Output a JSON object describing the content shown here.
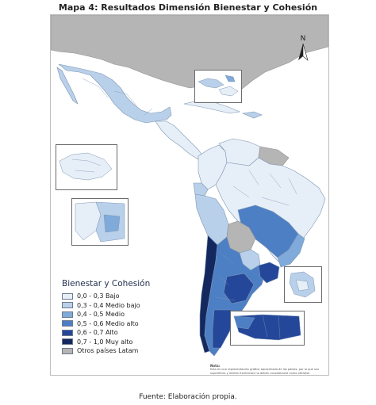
{
  "title": "Mapa 4: Resultados Dimensión Bienestar y Cohesión",
  "north_label": "N",
  "legend": {
    "title": "Bienestar y Cohesión",
    "items": [
      {
        "label": "0,0 - 0,3 Bajo",
        "color": "#e6eef8"
      },
      {
        "label": "0,3 - 0,4 Medio bajo",
        "color": "#b9d0ea"
      },
      {
        "label": "0,4 - 0,5 Medio",
        "color": "#7faada"
      },
      {
        "label": "0,5 - 0,6 Medio alto",
        "color": "#4d7fc4"
      },
      {
        "label": "0,6 - 0,7 Alto",
        "color": "#24479a"
      },
      {
        "label": "0,7 - 1,0 Muy alto",
        "color": "#13285f"
      },
      {
        "label": "Otros países Latam",
        "color": "#b5b5b5"
      }
    ]
  },
  "note": {
    "title": "Nota:",
    "text": "Esta es una representación gráfica aproximada de los países, por lo que sus superficies y límites fronterizos no deben considerarse como oficiales"
  },
  "source": "Fuente: Elaboración propia."
}
